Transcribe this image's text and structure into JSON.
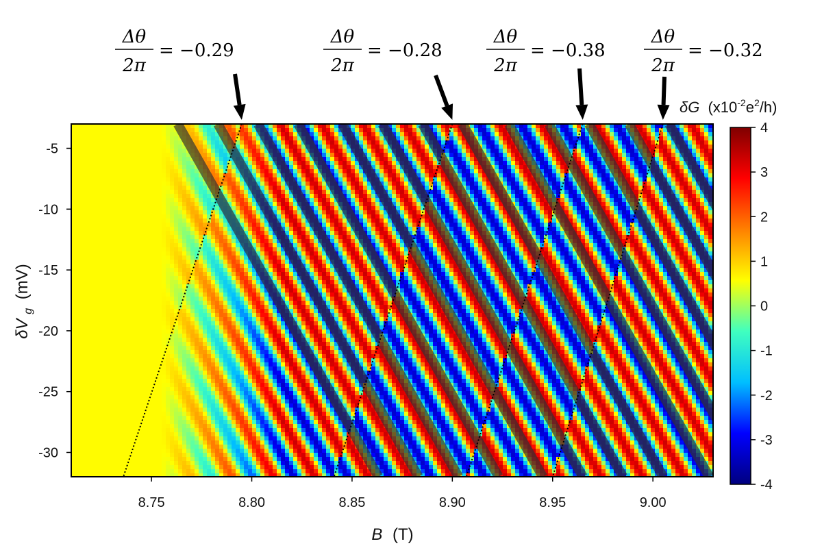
{
  "chart_data": {
    "type": "heatmap",
    "title": "",
    "xlabel": {
      "symbol": "B",
      "unit": "(T)"
    },
    "ylabel": {
      "symbol": "δV",
      "subscript": "g",
      "unit": "(mV)"
    },
    "xlim": [
      8.71,
      9.03
    ],
    "ylim": [
      -32.0,
      -3.0
    ],
    "x_ticks": [
      "8.75",
      "8.80",
      "8.85",
      "8.90",
      "8.95",
      "9.00"
    ],
    "x_tick_values": [
      8.75,
      8.8,
      8.85,
      8.9,
      8.95,
      9.0
    ],
    "y_ticks": [
      "-5",
      "-10",
      "-15",
      "-20",
      "-25",
      "-30"
    ],
    "y_tick_values": [
      -5,
      -10,
      -15,
      -20,
      -25,
      -30
    ],
    "colorbar": {
      "title_symbol": "δG",
      "title_unit": "(x10",
      "title_exp": "-2",
      "title_tail": "e",
      "title_tail_exp": "2",
      "title_end": "/h)",
      "range": [
        -4,
        4
      ],
      "ticks": [
        "4",
        "3",
        "2",
        "1",
        "0",
        "-1",
        "-2",
        "-3",
        "-4"
      ],
      "tick_values": [
        4,
        3,
        2,
        1,
        0,
        -1,
        -2,
        -3,
        -4
      ],
      "colormap": [
        "#00007f",
        "#0000ff",
        "#00bfff",
        "#40ffbf",
        "#ffff00",
        "#ff8000",
        "#ff0000",
        "#7f0000"
      ]
    },
    "oscillation": {
      "stripe_slope_mV_per_T": -290,
      "period_B_T": 0.0207,
      "phase_boundaries": [
        {
          "B_top": 8.795,
          "B_bottom": 8.736
        },
        {
          "B_top": 8.9,
          "B_bottom": 8.841
        },
        {
          "B_top": 8.965,
          "B_bottom": 8.907
        },
        {
          "B_top": 9.005,
          "B_bottom": 8.95
        }
      ]
    },
    "guide_lines": [
      {
        "B_at_minus5": 8.77,
        "y_start": -3.0,
        "y_end": -32.0
      },
      {
        "B_at_minus5": 8.79,
        "y_start": -3.0,
        "y_end": -32.0
      },
      {
        "B_at_minus5": 8.81,
        "y_start": -3.0,
        "y_end": -32.0
      },
      {
        "B_at_minus5": 8.83,
        "y_start": -3.0,
        "y_end": -32.0
      },
      {
        "B_at_minus5": 8.852,
        "y_start": -3.0,
        "y_end": -32.0
      },
      {
        "B_at_minus5": 8.872,
        "y_start": -3.0,
        "y_end": -32.0
      },
      {
        "B_at_minus5": 8.892,
        "y_start": -3.0,
        "y_end": -32.0
      },
      {
        "B_at_minus5": 8.912,
        "y_start": -3.0,
        "y_end": -32.0
      },
      {
        "B_at_minus5": 8.935,
        "y_start": -3.0,
        "y_end": -32.0
      },
      {
        "B_at_minus5": 8.955,
        "y_start": -3.0,
        "y_end": -32.0
      },
      {
        "B_at_minus5": 8.975,
        "y_start": -3.0,
        "y_end": -32.0
      },
      {
        "B_at_minus5": 8.995,
        "y_start": -3.0,
        "y_end": -32.0
      },
      {
        "B_at_minus5": 9.015,
        "y_start": -3.0,
        "y_end": -32.0
      }
    ],
    "annotations": [
      {
        "numerator": "Δθ",
        "denominator": "2π",
        "value": "= −0.29",
        "arrow_to_B": 8.795
      },
      {
        "numerator": "Δθ",
        "denominator": "2π",
        "value": "= −0.28",
        "arrow_to_B": 8.9
      },
      {
        "numerator": "Δθ",
        "denominator": "2π",
        "value": "= −0.38",
        "arrow_to_B": 8.965
      },
      {
        "numerator": "Δθ",
        "denominator": "2π",
        "value": "= −0.32",
        "arrow_to_B": 9.005
      }
    ]
  }
}
